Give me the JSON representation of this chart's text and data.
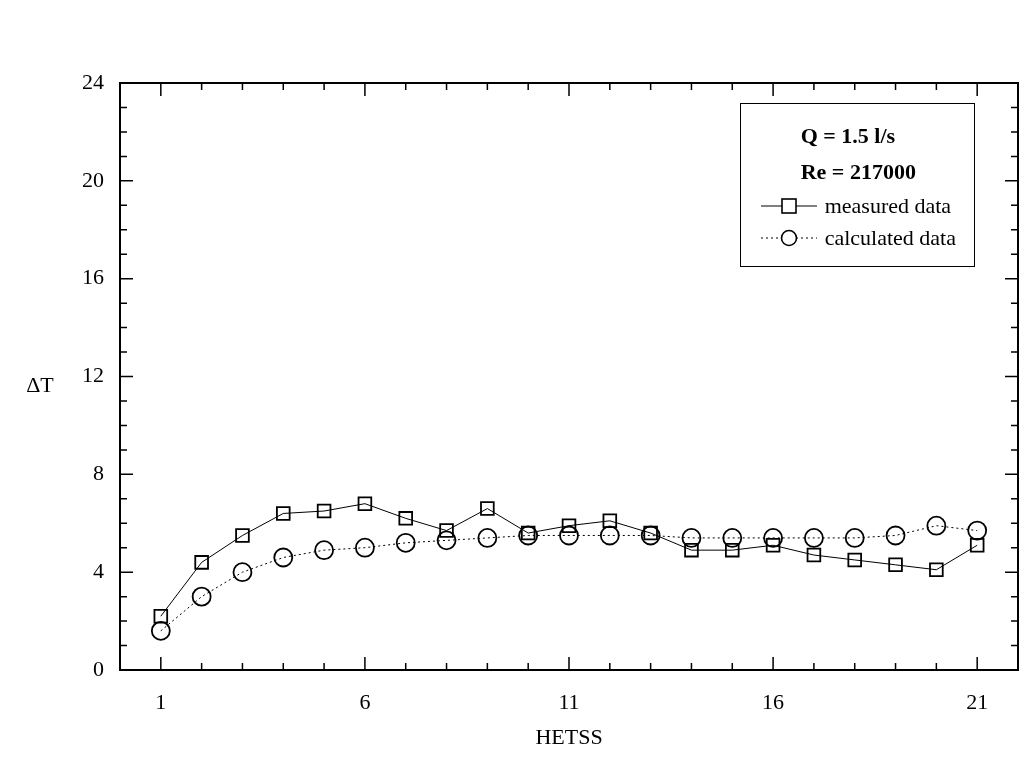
{
  "chart_data": {
    "type": "line",
    "xlabel": "HETSS",
    "ylabel": "ΔT",
    "legend_title": "Q = 1.5 l/s",
    "annotations": [
      "Re = 217000"
    ],
    "legend": "top right",
    "x": [
      1,
      2,
      3,
      4,
      5,
      6,
      7,
      8,
      9,
      10,
      11,
      12,
      13,
      14,
      15,
      16,
      17,
      18,
      19,
      20,
      21
    ],
    "xlim": [
      0,
      22
    ],
    "xticks": [
      {
        "value": 0,
        "label": null
      },
      1,
      {
        "value": 2,
        "label": null
      },
      {
        "value": 3,
        "label": null
      },
      {
        "value": 4,
        "label": null
      },
      {
        "value": 5,
        "label": null
      },
      6,
      {
        "value": 7,
        "label": null
      },
      {
        "value": 8,
        "label": null
      },
      {
        "value": 9,
        "label": null
      },
      {
        "value": 10,
        "label": null
      },
      11,
      {
        "value": 12,
        "label": null
      },
      {
        "value": 13,
        "label": null
      },
      {
        "value": 14,
        "label": null
      },
      {
        "value": 15,
        "label": null
      },
      16,
      {
        "value": 17,
        "label": null
      },
      {
        "value": 18,
        "label": null
      },
      {
        "value": 19,
        "label": null
      },
      {
        "value": 20,
        "label": null
      },
      21,
      {
        "value": 22,
        "label": null
      }
    ],
    "ylim": [
      0,
      24
    ],
    "yticks": [
      0,
      {
        "value": 1,
        "label": null
      },
      {
        "value": 2,
        "label": null
      },
      {
        "value": 3,
        "label": null
      },
      4,
      {
        "value": 5,
        "label": null
      },
      {
        "value": 6,
        "label": null
      },
      {
        "value": 7,
        "label": null
      },
      8,
      {
        "value": 9,
        "label": null
      },
      {
        "value": 10,
        "label": null
      },
      {
        "value": 11,
        "label": null
      },
      12,
      {
        "value": 13,
        "label": null
      },
      {
        "value": 14,
        "label": null
      },
      {
        "value": 15,
        "label": null
      },
      16,
      {
        "value": 17,
        "label": null
      },
      {
        "value": 18,
        "label": null
      },
      {
        "value": 19,
        "label": null
      },
      20,
      {
        "value": 21,
        "label": null
      },
      {
        "value": 22,
        "label": null
      },
      {
        "value": 23,
        "label": null
      },
      24
    ],
    "series": [
      {
        "name": "measured data",
        "color": "#000000",
        "marker": "square",
        "line_style": "solid",
        "values": [
          2.2,
          4.4,
          5.5,
          6.4,
          6.5,
          6.8,
          6.2,
          5.7,
          6.6,
          5.6,
          5.9,
          6.1,
          5.6,
          4.9,
          4.9,
          5.1,
          4.7,
          4.5,
          4.3,
          4.1,
          5.1
        ]
      },
      {
        "name": "calculated data",
        "color": "#000000",
        "marker": "circle",
        "line_style": "dotted",
        "values": [
          1.6,
          3.0,
          4.0,
          4.6,
          4.9,
          5.0,
          5.2,
          5.3,
          5.4,
          5.5,
          5.5,
          5.5,
          5.5,
          5.4,
          5.4,
          5.4,
          5.4,
          5.4,
          5.5,
          5.9,
          5.7
        ]
      }
    ]
  }
}
